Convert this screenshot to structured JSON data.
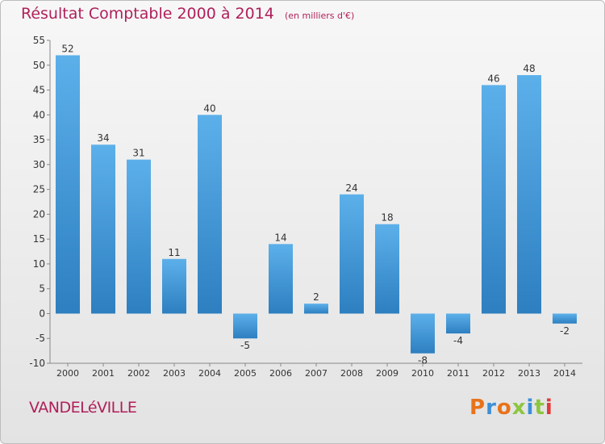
{
  "title": "Résultat Comptable 2000 à 2014",
  "subtitle": "(en milliers d'€)",
  "commune": "VANDELéVILLE",
  "logo_text": "Proxiti",
  "colors": {
    "title": "#b01f5a",
    "bar_light": "#5cb0ea",
    "bar_dark": "#2d7fc0",
    "logo": [
      "#e8731a",
      "#3b8fd8",
      "#e8731a",
      "#8cc63f",
      "#3b8fd8",
      "#8cc63f",
      "#e03a3a"
    ]
  },
  "chart_data": {
    "type": "bar",
    "categories": [
      "2000",
      "2001",
      "2002",
      "2003",
      "2004",
      "2005",
      "2006",
      "2007",
      "2008",
      "2009",
      "2010",
      "2011",
      "2012",
      "2013",
      "2014"
    ],
    "values": [
      52,
      34,
      31,
      11,
      40,
      -5,
      14,
      2,
      24,
      18,
      -8,
      -4,
      46,
      48,
      -2
    ],
    "ylim": [
      -10,
      55
    ],
    "yticks": [
      -10,
      -5,
      0,
      5,
      10,
      15,
      20,
      25,
      30,
      35,
      40,
      45,
      50,
      55
    ],
    "grid": false
  }
}
